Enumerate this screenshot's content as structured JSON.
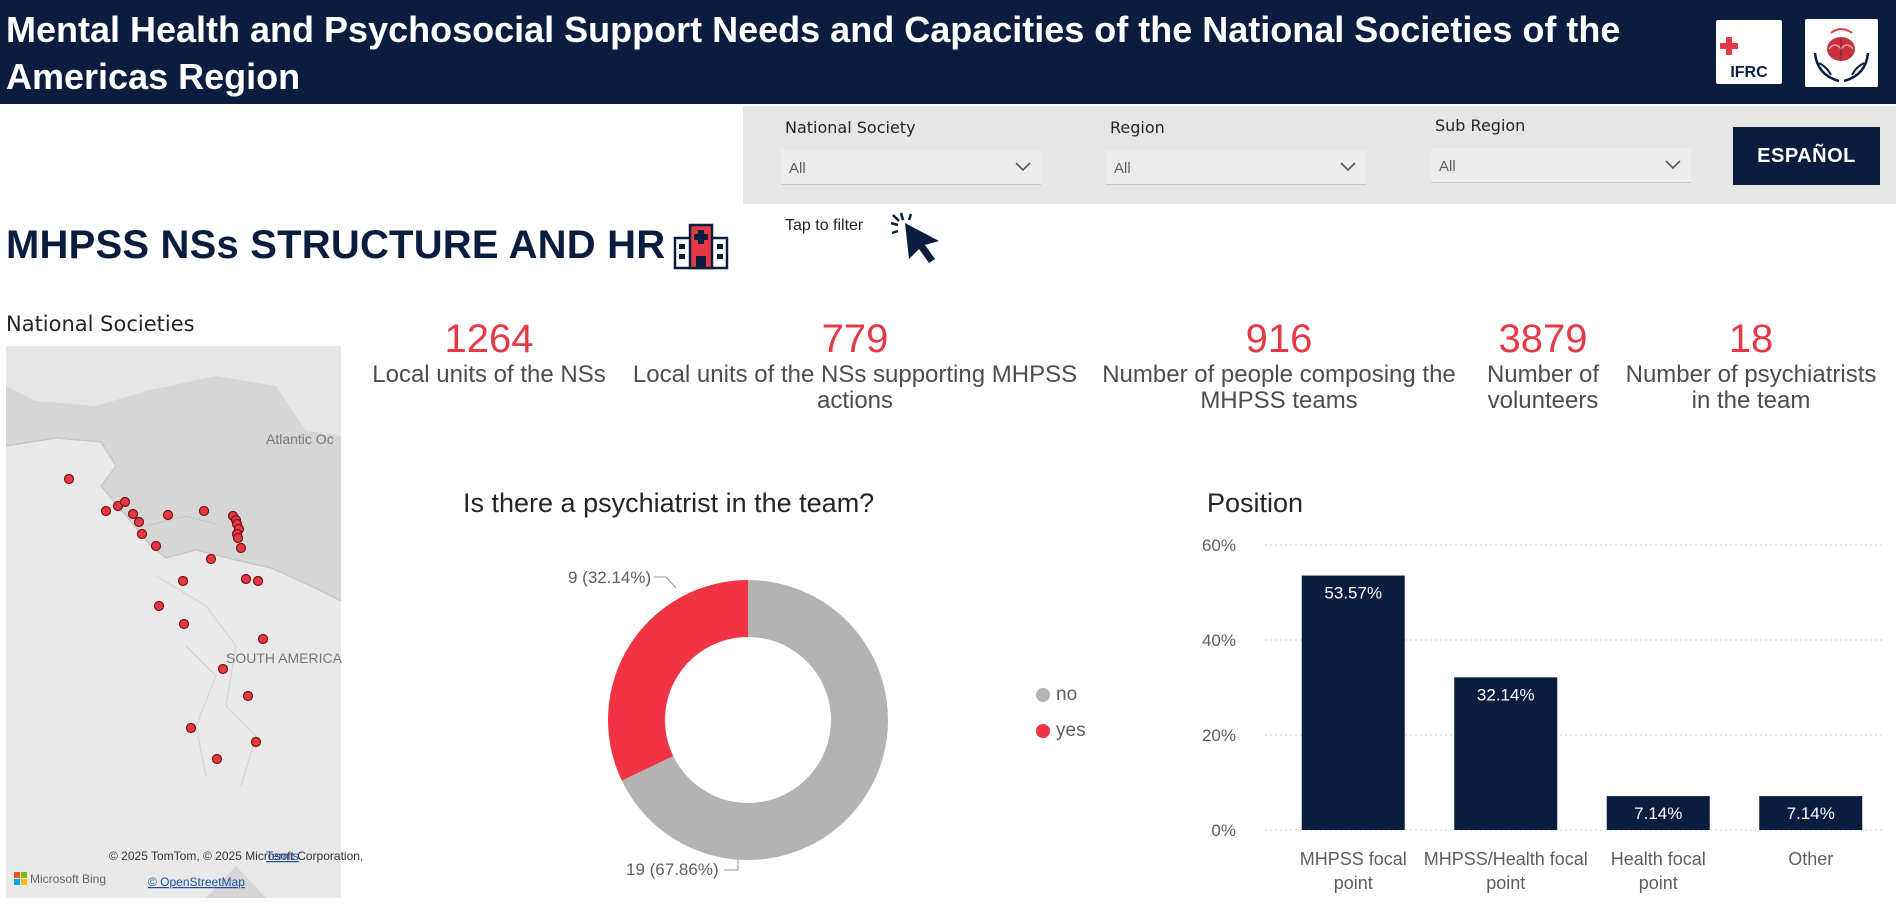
{
  "header": {
    "title": "Mental Health and Psychosocial Support Needs and Capacities of the National Societies of the Americas Region",
    "ifrc_logo_text": "IFRC"
  },
  "filters": [
    {
      "label": "National Society",
      "value": "All"
    },
    {
      "label": "Region",
      "value": "All"
    },
    {
      "label": "Sub Region",
      "value": "All"
    }
  ],
  "language_button": "ESPAÑOL",
  "tap_to_filter": "Tap to filter",
  "section_title": "MHPSS NSs STRUCTURE AND HR",
  "map": {
    "title": "National Societies",
    "labels": {
      "ocean": "Atlantic Oc",
      "continent": "SOUTH AMERICA"
    },
    "attribution": "© 2025 TomTom, © 2025 Microsoft Corporation,",
    "terms": "Terms",
    "osm": "© OpenStreetMap",
    "brand": "Microsoft Bing",
    "marker_color": "#e63946"
  },
  "kpis": [
    {
      "value": "1264",
      "label": "Local units of the NSs"
    },
    {
      "value": "779",
      "label": "Local units of the NSs supporting MHPSS actions"
    },
    {
      "value": "916",
      "label": "Number of people composing the MHPSS teams"
    },
    {
      "value": "3879",
      "label": "Number of volunteers"
    },
    {
      "value": "18",
      "label": "Number of psychiatrists in the team"
    }
  ],
  "chart_data": [
    {
      "type": "pie",
      "title": "Is there a psychiatrist in the team?",
      "donut": true,
      "categories": [
        "no",
        "yes"
      ],
      "values": [
        19,
        9
      ],
      "data_labels": [
        "19 (67.86%)",
        "9 (32.14%)"
      ],
      "colors": [
        "#b3b3b3",
        "#f03444"
      ],
      "legend": "right"
    },
    {
      "type": "bar",
      "title": "Position",
      "categories": [
        "MHPSS focal point",
        "MHPSS/Health focal point",
        "Health focal point",
        "Other"
      ],
      "values": [
        53.57,
        32.14,
        7.14,
        7.14
      ],
      "data_labels": [
        "53.57%",
        "32.14%",
        "7.14%",
        "7.14%"
      ],
      "ylim": [
        0,
        60
      ],
      "yticks": [
        "0%",
        "20%",
        "40%",
        "60%"
      ],
      "grid": true,
      "bar_color": "#0b1d3f"
    }
  ]
}
